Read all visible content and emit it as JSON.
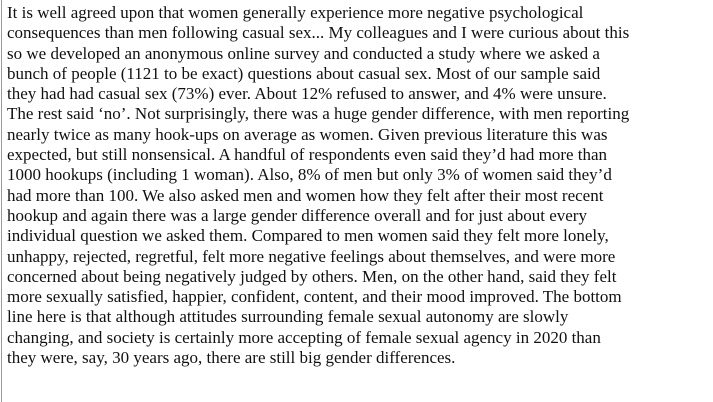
{
  "document": {
    "lines": [
      "It is well agreed upon that women generally experience more negative psychological",
      "consequences than men following casual sex... My colleagues  and I were curious about this",
      "so we developed an anonymous online survey and conducted a study where we asked a",
      "bunch of people (1121 to be exact) questions about casual sex. Most of our sample said",
      "they had had casual sex (73%) ever. About 12% refused to answer, and 4% were unsure.",
      "The rest said ‘no’. Not surprisingly, there was a huge gender difference,  with men reporting",
      "nearly twice as many hook-ups on average as women. Given previous literature this was",
      "expected, but still nonsensical. A  handful of respondents even said they’d had more than",
      "1000 hookups (including 1 woman). Also, 8% of men but only 3% of women said they’d",
      "had more than 100. We also asked men and women how they felt after their most recent",
      "hookup and again there was a large gender difference  overall and for just about every",
      "individual question we asked them. Compared to men women said they felt  more lonely,",
      "unhappy, rejected, regretful, felt more negative feelings about themselves, and were more",
      "concerned about being negatively judged by others. Men, on the other hand, said they felt",
      "more sexually satisfied, happier, confident, content, and their mood improved. The bottom",
      "line here is that although attitudes surrounding female sexual autonomy are slowly",
      "changing, and society is certainly more accepting of female sexual agency in 2020 than",
      "they were, say, 30 years ago, there are still big gender differences."
    ]
  }
}
